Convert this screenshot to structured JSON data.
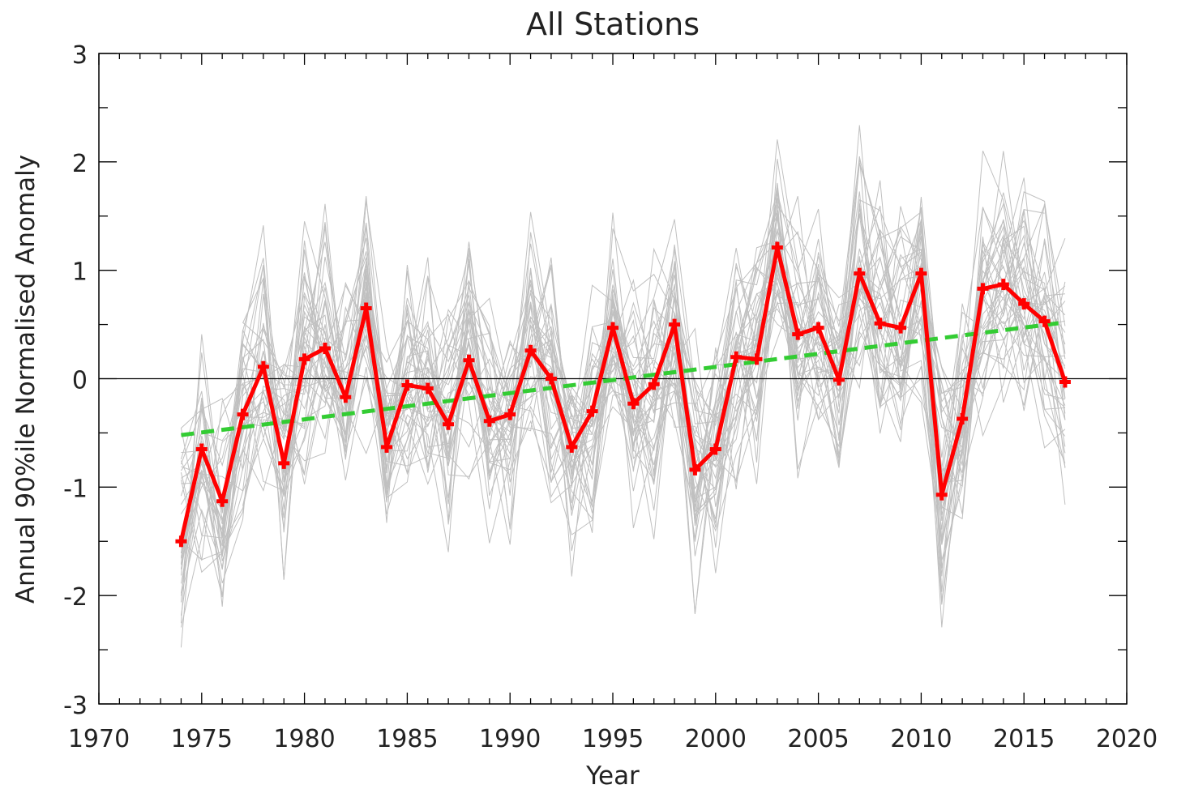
{
  "chart_data": {
    "type": "line",
    "title": "All Stations",
    "xlabel": "Year",
    "ylabel": "Annual 90%ile Normalised Anomaly",
    "xlim": [
      1970,
      2020
    ],
    "ylim": [
      -3,
      3
    ],
    "xticks": [
      "1970",
      "1975",
      "1980",
      "1985",
      "1990",
      "1995",
      "2000",
      "2005",
      "2010",
      "2015",
      "2020"
    ],
    "yticks": [
      "-3",
      "-2",
      "-1",
      "0",
      "1",
      "2",
      "3"
    ],
    "grid": false,
    "legend": "none",
    "zero_line": true,
    "series": [
      {
        "role": "mean",
        "color": "#ff0000",
        "marker": "plus",
        "x": [
          1974,
          1975,
          1976,
          1977,
          1978,
          1979,
          1980,
          1981,
          1982,
          1983,
          1984,
          1985,
          1986,
          1987,
          1988,
          1989,
          1990,
          1991,
          1992,
          1993,
          1994,
          1995,
          1996,
          1997,
          1998,
          1999,
          2000,
          2001,
          2002,
          2003,
          2004,
          2005,
          2006,
          2007,
          2008,
          2009,
          2010,
          2011,
          2012,
          2013,
          2014,
          2015,
          2016,
          2017
        ],
        "values": [
          -1.5,
          -0.65,
          -1.13,
          -0.33,
          0.11,
          -0.78,
          0.18,
          0.28,
          -0.17,
          0.65,
          -0.63,
          -0.06,
          -0.09,
          -0.42,
          0.17,
          -0.39,
          -0.33,
          0.26,
          0.0,
          -0.63,
          -0.3,
          0.47,
          -0.23,
          -0.05,
          0.5,
          -0.84,
          -0.65,
          0.2,
          0.18,
          1.21,
          0.41,
          0.47,
          -0.01,
          0.97,
          0.51,
          0.47,
          0.97,
          -1.07,
          -0.37,
          0.83,
          0.87,
          0.69,
          0.53,
          -0.03
        ]
      },
      {
        "role": "trend",
        "color": "#33cc33",
        "style": "dashed",
        "x": [
          1974,
          2017
        ],
        "values": [
          -0.52,
          0.52
        ]
      }
    ],
    "station_series": {
      "color": "#c0c0c0",
      "count": 40,
      "x_start": 1974,
      "x_end": 2017
    }
  }
}
